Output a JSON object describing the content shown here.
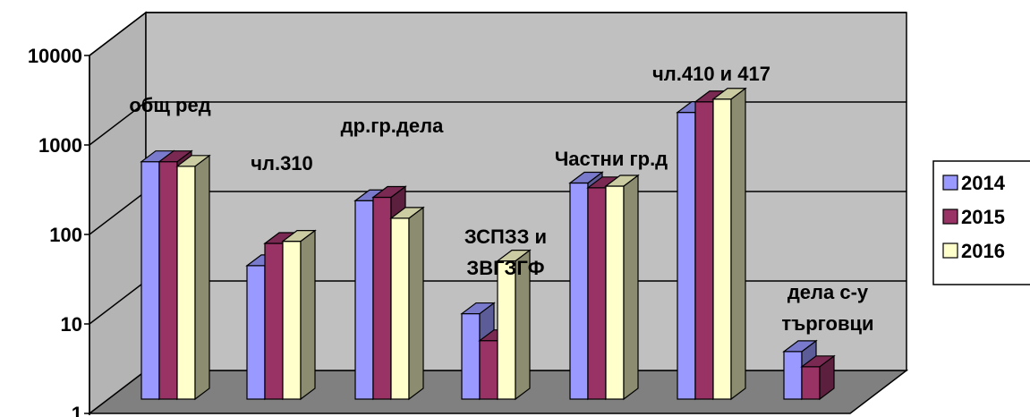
{
  "chart_data": {
    "type": "bar",
    "scale": "log",
    "ylim": [
      1,
      10000
    ],
    "yticks": [
      "1",
      "10",
      "100",
      "1000",
      "10000"
    ],
    "grid": true,
    "legend_position": "right",
    "categories": [
      {
        "lines": [
          "общ ред"
        ]
      },
      {
        "lines": [
          "чл.310"
        ]
      },
      {
        "lines": [
          "др.гр.дела"
        ]
      },
      {
        "lines": [
          "ЗСПЗЗ и",
          "ЗВГЗГФ"
        ]
      },
      {
        "lines": [
          "Частни гр.д"
        ]
      },
      {
        "lines": [
          "чл.410 и 417"
        ]
      },
      {
        "lines": [
          "дела с-у",
          "търговци"
        ]
      }
    ],
    "series": [
      {
        "name": "2014",
        "color": "#9999ff",
        "values": [
          450,
          31,
          165,
          9,
          260,
          1600,
          3.4
        ]
      },
      {
        "name": "2015",
        "color": "#993366",
        "values": [
          450,
          55,
          180,
          4.5,
          230,
          2100,
          2.3
        ]
      },
      {
        "name": "2016",
        "color": "#ffffcc",
        "values": [
          400,
          58,
          105,
          35,
          240,
          2250,
          null
        ]
      }
    ]
  }
}
